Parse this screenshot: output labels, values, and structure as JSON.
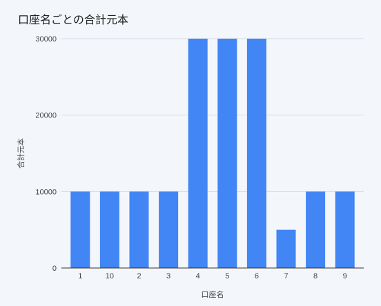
{
  "chart_data": {
    "type": "bar",
    "title": "口座名ごとの合計元本",
    "xlabel": "口座名",
    "ylabel": "合計元本",
    "categories": [
      "1",
      "10",
      "2",
      "3",
      "4",
      "5",
      "6",
      "7",
      "8",
      "9"
    ],
    "values": [
      10000,
      10000,
      10000,
      10000,
      30000,
      30000,
      30000,
      5000,
      10000,
      10000
    ],
    "ylim": [
      0,
      30000
    ],
    "yticks": [
      "0",
      "10000",
      "20000",
      "30000"
    ],
    "grid": true,
    "bar_color": "#4285f4",
    "gridline_color": "#d5d9e0",
    "background": "#f3f6fb"
  }
}
